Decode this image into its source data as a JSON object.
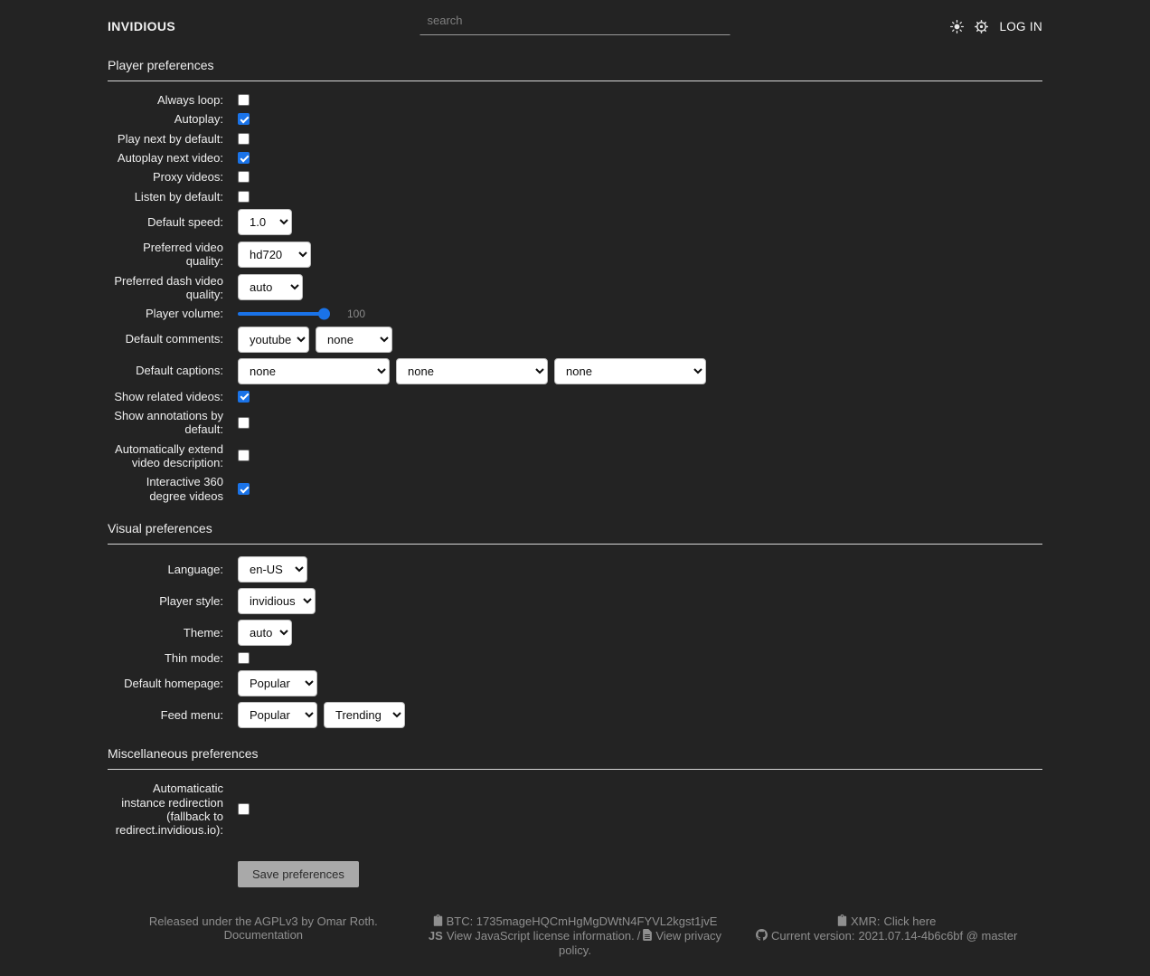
{
  "page": {
    "background": "#232323",
    "accent_blue": "#1a73e8"
  },
  "header": {
    "logo": "INVIDIOUS",
    "search_placeholder": "search",
    "login_label": "LOG IN"
  },
  "sections": [
    {
      "title": "Player preferences",
      "rows": [
        {
          "kind": "checkbox",
          "name": "always-loop",
          "label": "Always loop:",
          "checked": false
        },
        {
          "kind": "checkbox",
          "name": "autoplay",
          "label": "Autoplay:",
          "checked": true
        },
        {
          "kind": "checkbox",
          "name": "play-next-by-default",
          "label": "Play next by default:",
          "checked": false
        },
        {
          "kind": "checkbox",
          "name": "autoplay-next-video",
          "label": "Autoplay next video:",
          "checked": true
        },
        {
          "kind": "checkbox",
          "name": "proxy-videos",
          "label": "Proxy videos:",
          "checked": false
        },
        {
          "kind": "checkbox",
          "name": "listen-by-default",
          "label": "Listen by default:",
          "checked": false
        },
        {
          "kind": "select",
          "name": "default-speed",
          "label": "Default speed:",
          "selects": [
            {
              "value": "1.0"
            }
          ]
        },
        {
          "kind": "select",
          "name": "preferred-video-quality",
          "label": "Preferred video quality:",
          "selects": [
            {
              "value": "hd720"
            }
          ]
        },
        {
          "kind": "select",
          "name": "preferred-dash-video-quality",
          "label": "Preferred dash video quality:",
          "selects": [
            {
              "value": "auto"
            }
          ]
        },
        {
          "kind": "slider",
          "name": "player-volume",
          "label": "Player volume:",
          "value": 100,
          "min": 0,
          "max": 100,
          "value_label": "100"
        },
        {
          "kind": "select",
          "name": "default-comments",
          "label": "Default comments:",
          "selects": [
            {
              "value": "youtube"
            },
            {
              "value": "none"
            }
          ]
        },
        {
          "kind": "select",
          "name": "default-captions",
          "label": "Default captions:",
          "selects": [
            {
              "value": "none"
            },
            {
              "value": "none"
            },
            {
              "value": "none"
            }
          ]
        },
        {
          "kind": "checkbox",
          "name": "show-related-videos",
          "label": "Show related videos:",
          "checked": true
        },
        {
          "kind": "checkbox",
          "name": "show-annotations-by-default",
          "label": "Show annotations by default:",
          "checked": false
        },
        {
          "kind": "checkbox",
          "name": "automatically-extend-video-description",
          "label": "Automatically extend video description:",
          "checked": false
        },
        {
          "kind": "checkbox",
          "name": "interactive-360-degree-videos",
          "label": "Interactive 360 degree videos",
          "checked": true
        }
      ]
    },
    {
      "title": "Visual preferences",
      "rows": [
        {
          "kind": "select",
          "name": "language",
          "label": "Language:",
          "selects": [
            {
              "value": "en-US"
            }
          ]
        },
        {
          "kind": "select",
          "name": "player-style",
          "label": "Player style:",
          "selects": [
            {
              "value": "invidious"
            }
          ]
        },
        {
          "kind": "select",
          "name": "theme",
          "label": "Theme:",
          "selects": [
            {
              "value": "auto"
            }
          ]
        },
        {
          "kind": "checkbox",
          "name": "thin-mode",
          "label": "Thin mode:",
          "checked": false
        },
        {
          "kind": "select",
          "name": "default-homepage",
          "label": "Default homepage:",
          "selects": [
            {
              "value": "Popular"
            }
          ]
        },
        {
          "kind": "select",
          "name": "feed-menu",
          "label": "Feed menu:",
          "selects": [
            {
              "value": "Popular"
            },
            {
              "value": "Trending"
            }
          ]
        }
      ]
    },
    {
      "title": "Miscellaneous preferences",
      "rows": [
        {
          "kind": "checkbox",
          "name": "automatic-instance-redirection",
          "label": "Automaticatic instance redirection (fallback to redirect.invidious.io):",
          "checked": false
        }
      ]
    }
  ],
  "save_button_label": "Save preferences",
  "footer": {
    "left": {
      "release_text": "Released under the AGPLv3 by Omar Roth.",
      "documentation_link": "Documentation"
    },
    "middle": {
      "btc_text": "BTC: 1735mageHQCmHgMgDWtN4FYVL2kgst1jvE",
      "js_license_link": "View JavaScript license information.",
      "separator": "/",
      "privacy_link": "View privacy policy."
    },
    "right": {
      "xmr_label": "XMR:",
      "xmr_link": "Click here",
      "version_label": "Current version:",
      "version_value": "2021.07.14-4b6c6bf @ master"
    }
  }
}
